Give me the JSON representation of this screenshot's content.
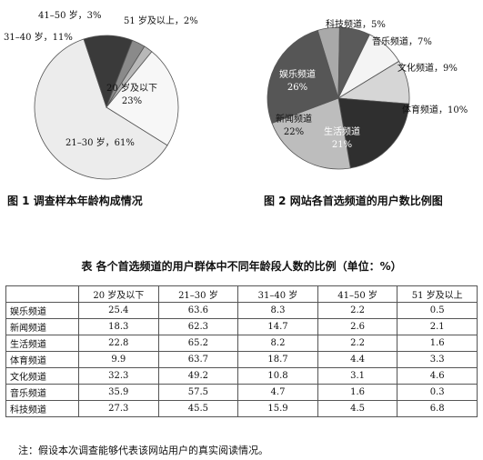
{
  "chart_data": [
    {
      "type": "pie",
      "title": "图 1 调查样本年龄构成情况",
      "slices": [
        {
          "label": "21–30 岁",
          "value": 61,
          "text": "21–30 岁，61%",
          "color": "#ececec"
        },
        {
          "label": "31–40 岁",
          "value": 11,
          "text": "31–40 岁，11%",
          "color": "#3a3a3a"
        },
        {
          "label": "41–50 岁",
          "value": 3,
          "text": "41–50 岁，3%",
          "color": "#8a8a8a"
        },
        {
          "label": "51 岁及以上",
          "value": 2,
          "text": "51 岁及以上，2%",
          "color": "#b8b8b8"
        },
        {
          "label": "20 岁及以下",
          "value": 23,
          "text_lines": [
            "20 岁及以下",
            "23%"
          ],
          "color": "#f7f7f7"
        }
      ]
    },
    {
      "type": "pie",
      "title": "图 2 网站各首选频道的用户数比例图",
      "slices": [
        {
          "label": "科技频道",
          "value": 5,
          "text": "科技频道，5%",
          "color": "#a9a9a9"
        },
        {
          "label": "音乐频道",
          "value": 7,
          "text": "音乐频道，7%",
          "color": "#5a5a5a"
        },
        {
          "label": "文化频道",
          "value": 9,
          "text": "文化频道，9%",
          "color": "#f4f4f4"
        },
        {
          "label": "体育频道",
          "value": 10,
          "text": "体育频道，10%",
          "color": "#d6d6d6"
        },
        {
          "label": "生活频道",
          "value": 21,
          "text_lines": [
            "生活频道",
            "21%"
          ],
          "color": "#2f2f2f"
        },
        {
          "label": "新闻频道",
          "value": 22,
          "text_lines": [
            "新闻频道",
            "22%"
          ],
          "color": "#bdbdbd"
        },
        {
          "label": "娱乐频道",
          "value": 26,
          "text_lines": [
            "娱乐频道",
            "26%"
          ],
          "color": "#565656"
        }
      ]
    },
    {
      "type": "table",
      "title": "表 各个首选频道的用户群体中不同年龄段人数的比例（单位：%）",
      "columns": [
        "",
        "20 岁及以下",
        "21–30 岁",
        "31–40 岁",
        "41–50 岁",
        "51 岁及以上"
      ],
      "rows": [
        {
          "name": "娱乐频道",
          "values": [
            "25.4",
            "63.6",
            "8.3",
            "2.2",
            "0.5"
          ]
        },
        {
          "name": "新闻频道",
          "values": [
            "18.3",
            "62.3",
            "14.7",
            "2.6",
            "2.1"
          ]
        },
        {
          "name": "生活频道",
          "values": [
            "22.8",
            "65.2",
            "8.2",
            "2.2",
            "1.6"
          ]
        },
        {
          "name": "体育频道",
          "values": [
            "9.9",
            "63.7",
            "18.7",
            "4.4",
            "3.3"
          ]
        },
        {
          "name": "文化频道",
          "values": [
            "32.3",
            "49.2",
            "10.8",
            "3.1",
            "4.6"
          ]
        },
        {
          "name": "音乐频道",
          "values": [
            "35.9",
            "57.5",
            "4.7",
            "1.6",
            "0.3"
          ]
        },
        {
          "name": "科技频道",
          "values": [
            "27.3",
            "45.5",
            "15.9",
            "4.5",
            "6.8"
          ]
        }
      ]
    }
  ],
  "captions": {
    "fig1": "图 1 调查样本年龄构成情况",
    "fig2": "图 2 网站各首选频道的用户数比例图",
    "table": "表 各个首选频道的用户群体中不同年龄段人数的比例（单位：%）"
  },
  "note": "注：假设本次调查能够代表该网站用户的真实阅读情况。"
}
